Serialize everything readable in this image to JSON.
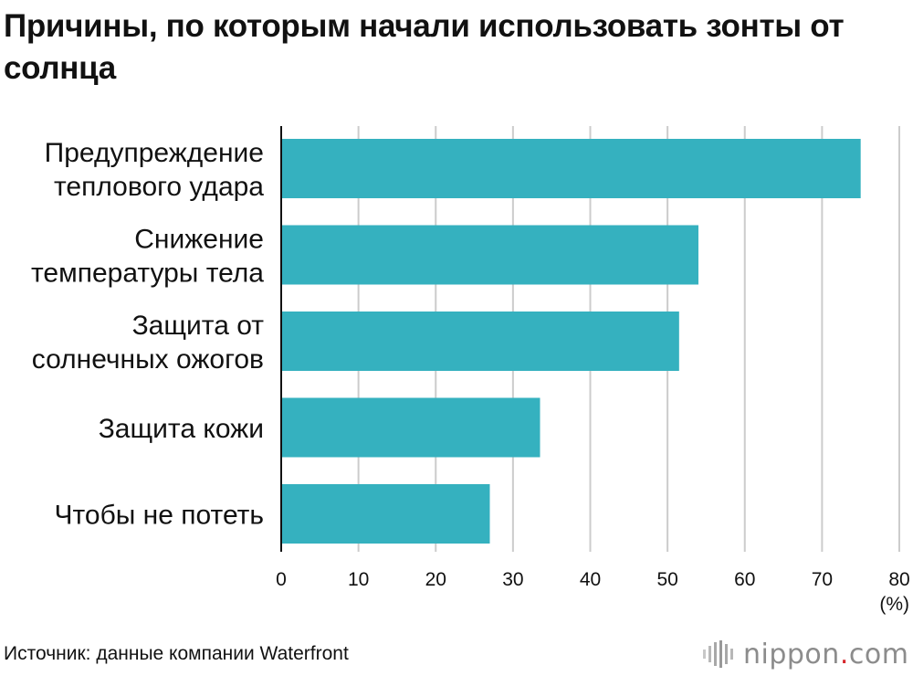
{
  "title": "Причины, по которым начали использовать зонты от солнца",
  "chart_data": {
    "type": "bar",
    "orientation": "horizontal",
    "title": "Причины, по которым начали использовать зонты от солнца",
    "categories": [
      [
        "Предупреждение",
        "теплового удара"
      ],
      [
        "Снижение",
        "температуры тела"
      ],
      [
        "Защита от",
        "солнечных ожогов"
      ],
      [
        "Защита кожи"
      ],
      [
        "Чтобы не потеть"
      ]
    ],
    "values": [
      75,
      54,
      51.5,
      33.5,
      27
    ],
    "xlim": [
      0,
      80
    ],
    "xticks": [
      "0",
      "10",
      "20",
      "30",
      "40",
      "50",
      "60",
      "70",
      "80"
    ],
    "xunit": "(%)",
    "grid": true,
    "bar_color": "#35b1bf",
    "grid_color": "#cccccc"
  },
  "footer": {
    "source": "Источник: данные компании Waterfront",
    "logo_name": "nippon",
    "logo_dot": ".",
    "logo_tld": "com"
  },
  "colors": {
    "accent": "#d6262c",
    "logo_gray": "#8c8c8c"
  }
}
